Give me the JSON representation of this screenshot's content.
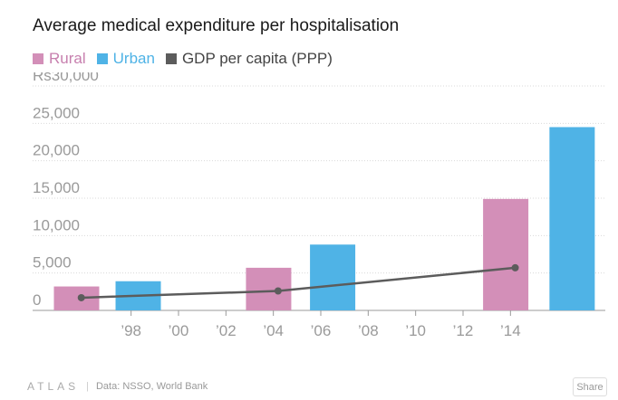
{
  "chart_data": {
    "type": "bar",
    "title": "Average medical expenditure per hospitalisation",
    "legend": [
      {
        "name": "Rural",
        "color": "#d38fb8",
        "text_color": "#c77fae"
      },
      {
        "name": "Urban",
        "color": "#4fb3e6",
        "text_color": "#4fb3e6"
      },
      {
        "name": "GDP per capita (PPP)",
        "color": "#5c5c5c",
        "text_color": "#444444"
      }
    ],
    "legend_position": "top-left",
    "xlim": [
      1994,
      2018
    ],
    "ylim": [
      0,
      30000
    ],
    "y_ticks": [
      {
        "value": 0,
        "label": "0"
      },
      {
        "value": 5000,
        "label": "5,000"
      },
      {
        "value": 10000,
        "label": "10,000"
      },
      {
        "value": 15000,
        "label": "15,000"
      },
      {
        "value": 20000,
        "label": "20,000"
      },
      {
        "value": 25000,
        "label": "25,000"
      },
      {
        "value": 30000,
        "label": "Rs30,000"
      }
    ],
    "x_ticks": [
      {
        "value": 1998,
        "label": "’98"
      },
      {
        "value": 2000,
        "label": "’00"
      },
      {
        "value": 2002,
        "label": "’02"
      },
      {
        "value": 2004,
        "label": "’04"
      },
      {
        "value": 2006,
        "label": "’06"
      },
      {
        "value": 2008,
        "label": "’08"
      },
      {
        "value": 2010,
        "label": "’10"
      },
      {
        "value": 2012,
        "label": "’12"
      },
      {
        "value": 2014,
        "label": "’14"
      }
    ],
    "grid": true,
    "bars": [
      {
        "series": "Rural",
        "x": 1995.7,
        "value": 3200
      },
      {
        "series": "Urban",
        "x": 1998.3,
        "value": 3900
      },
      {
        "series": "Rural",
        "x": 2003.8,
        "value": 5700
      },
      {
        "series": "Urban",
        "x": 2006.5,
        "value": 8800
      },
      {
        "series": "Rural",
        "x": 2013.8,
        "value": 14900
      },
      {
        "series": "Urban",
        "x": 2016.6,
        "value": 24500
      }
    ],
    "line": {
      "series": "GDP per capita (PPP)",
      "points": [
        {
          "x": 1995.9,
          "y": 1700
        },
        {
          "x": 2004.2,
          "y": 2600
        },
        {
          "x": 2014.2,
          "y": 5700
        }
      ]
    }
  },
  "footer": {
    "logo": "ATLAS",
    "source": "Data:  NSSO, World Bank",
    "share_label": "Share"
  }
}
